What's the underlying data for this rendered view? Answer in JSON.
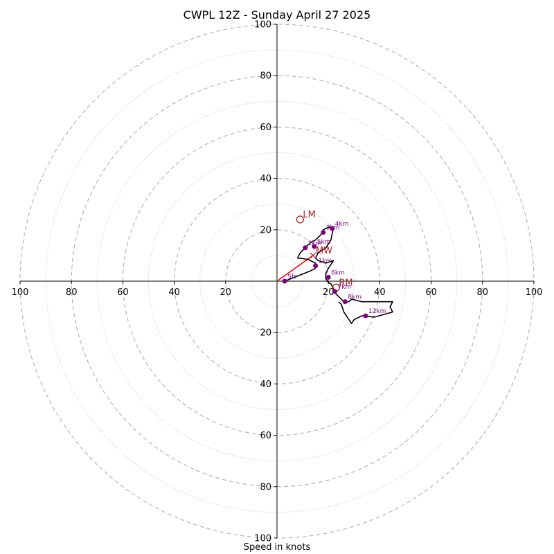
{
  "chart_data": {
    "type": "scatter",
    "subtype": "hodograph",
    "title": "CWPL 12Z - Sunday April 27 2025",
    "xlabel": "Speed in knots",
    "ylabel": "",
    "xlim": [
      -100,
      100
    ],
    "ylim": [
      -100,
      100
    ],
    "grid": true,
    "major_rings": [
      10,
      20,
      30,
      40,
      50,
      60,
      70,
      80,
      90,
      100
    ],
    "x_ticks": [
      {
        "value": -100,
        "label": "100"
      },
      {
        "value": -80,
        "label": "80"
      },
      {
        "value": -60,
        "label": "60"
      },
      {
        "value": -40,
        "label": "40"
      },
      {
        "value": -20,
        "label": "20"
      },
      {
        "value": 20,
        "label": "20"
      },
      {
        "value": 40,
        "label": "40"
      },
      {
        "value": 60,
        "label": "60"
      },
      {
        "value": 80,
        "label": "80"
      },
      {
        "value": 100,
        "label": "100"
      }
    ],
    "y_ticks": [
      {
        "value": 100,
        "label": "100"
      },
      {
        "value": 80,
        "label": "80"
      },
      {
        "value": 60,
        "label": "60"
      },
      {
        "value": 40,
        "label": "40"
      },
      {
        "value": 20,
        "label": "20"
      },
      {
        "value": -20,
        "label": "20"
      },
      {
        "value": -40,
        "label": "40"
      },
      {
        "value": -60,
        "label": "60"
      },
      {
        "value": -80,
        "label": "80"
      },
      {
        "value": -100,
        "label": "100"
      }
    ],
    "trace": {
      "color": "#000000",
      "points": [
        [
          3,
          0
        ],
        [
          8,
          2
        ],
        [
          13,
          4
        ],
        [
          15,
          5
        ],
        [
          15,
          7
        ],
        [
          12,
          8.5
        ],
        [
          8,
          9
        ],
        [
          9,
          11
        ],
        [
          11,
          13
        ],
        [
          13,
          15
        ],
        [
          15,
          16
        ],
        [
          17,
          18
        ],
        [
          18,
          20
        ],
        [
          20,
          21
        ],
        [
          22,
          21
        ],
        [
          21,
          16
        ],
        [
          19,
          13
        ],
        [
          16,
          11
        ],
        [
          15,
          9
        ],
        [
          16,
          8
        ],
        [
          19,
          7
        ],
        [
          22,
          8
        ],
        [
          20,
          5
        ],
        [
          19,
          3
        ],
        [
          19,
          1
        ],
        [
          20,
          -0.5
        ],
        [
          21,
          -1
        ],
        [
          22,
          -3
        ],
        [
          23,
          -5
        ],
        [
          25,
          -7
        ],
        [
          24,
          -6
        ],
        [
          26,
          -8
        ],
        [
          28,
          -8
        ],
        [
          29,
          -7
        ],
        [
          33,
          -8
        ],
        [
          38,
          -8
        ],
        [
          45,
          -8
        ],
        [
          44,
          -10
        ],
        [
          45,
          -12
        ],
        [
          38,
          -14
        ],
        [
          33,
          -13.5
        ],
        [
          30,
          -15
        ],
        [
          29,
          -16.5
        ],
        [
          26,
          -12
        ],
        [
          25,
          -9
        ],
        [
          24,
          -8
        ]
      ]
    },
    "height_markers": [
      {
        "label": "Sfc",
        "u": 3,
        "v": 0
      },
      {
        "label": "1km",
        "u": 15,
        "v": 6
      },
      {
        "label": "2km",
        "u": 11,
        "v": 13
      },
      {
        "label": "3km",
        "u": 18,
        "v": 19
      },
      {
        "label": "4km",
        "u": 21.5,
        "v": 20.5
      },
      {
        "label": "5km",
        "u": 14.5,
        "v": 13.5
      },
      {
        "label": "6km",
        "u": 20,
        "v": 1.5
      },
      {
        "label": "7km",
        "u": 22.5,
        "v": -4
      },
      {
        "label": "8km",
        "u": 26.5,
        "v": -8
      },
      {
        "label": "12km",
        "u": 34.5,
        "v": -13.5
      }
    ],
    "storm_motions": [
      {
        "label": "LM",
        "u": 9,
        "v": 24,
        "marker": "open-circle"
      },
      {
        "label": "RM",
        "u": 23,
        "v": -2.5,
        "marker": "open-circle"
      },
      {
        "label": "MW",
        "u": 14,
        "v": 10,
        "marker": "cross"
      }
    ],
    "storm_vector": {
      "from": [
        0,
        0
      ],
      "to": [
        14,
        10
      ],
      "color": "#ff0000"
    },
    "colors": {
      "trace": "#000000",
      "markers": "#800080",
      "storm_motion": "#b22222",
      "vector": "#ff0000",
      "major_grid": "#b0b0b0",
      "minor_grid": "#cccccc"
    }
  }
}
